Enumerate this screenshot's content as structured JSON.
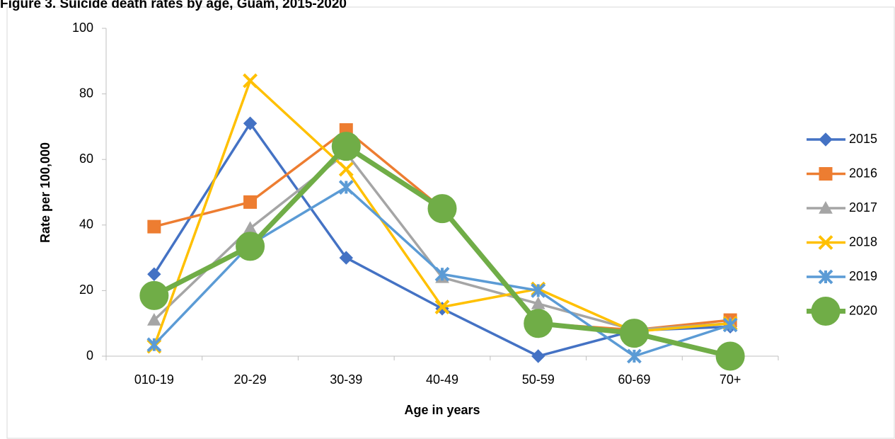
{
  "chart_data": {
    "type": "line",
    "title": "Figure 3. Suicide death rates by age, Guam, 2015-2020",
    "x_label": "Age in years",
    "y_label": "Rate per 100,000",
    "categories": [
      "010-19",
      "20-29",
      "30-39",
      "40-49",
      "50-59",
      "60-69",
      "70+"
    ],
    "ylim": [
      0,
      100
    ],
    "yticks": [
      0,
      20,
      40,
      60,
      80,
      100
    ],
    "grid": false,
    "legend": "right",
    "series": [
      {
        "name": "2015",
        "color": "#4472c4",
        "marker": "diamond",
        "values": [
          25,
          71,
          30,
          14.5,
          0,
          7.8,
          9
        ]
      },
      {
        "name": "2016",
        "color": "#ed7d31",
        "marker": "square",
        "values": [
          39.5,
          47,
          69,
          45,
          10,
          8,
          11
        ]
      },
      {
        "name": "2017",
        "color": "#a5a5a5",
        "marker": "triangle",
        "values": [
          11,
          39,
          62,
          24,
          16,
          8,
          10
        ]
      },
      {
        "name": "2018",
        "color": "#ffc000",
        "marker": "x",
        "values": [
          3,
          84,
          57,
          15,
          20.5,
          7.5,
          10
        ]
      },
      {
        "name": "2019",
        "color": "#5b9bd5",
        "marker": "star",
        "values": [
          3.5,
          34,
          51.5,
          25,
          20,
          0,
          9.5
        ]
      },
      {
        "name": "2020",
        "color": "#70ad47",
        "marker": "circle",
        "values": [
          18.5,
          33.5,
          64,
          45,
          10,
          7,
          0
        ]
      }
    ]
  }
}
